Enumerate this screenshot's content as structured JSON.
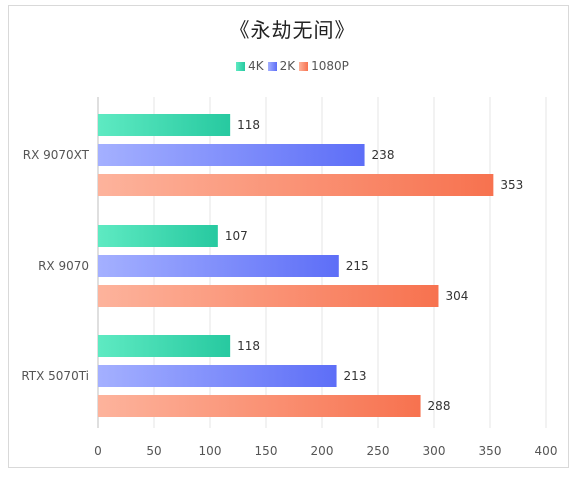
{
  "chart_data": {
    "type": "bar",
    "orientation": "horizontal",
    "title": "《永劫无间》",
    "categories": [
      "RX 9070XT",
      "RX 9070",
      "RTX 5070Ti"
    ],
    "series": [
      {
        "name": "4K",
        "values": [
          118,
          107,
          118
        ],
        "color_start": "#5eeac2",
        "color_end": "#27c9a0"
      },
      {
        "name": "2K",
        "values": [
          238,
          215,
          213
        ],
        "color_start": "#a4b0ff",
        "color_end": "#5d6ef7"
      },
      {
        "name": "1080P",
        "values": [
          353,
          304,
          288
        ],
        "color_start": "#fdb39c",
        "color_end": "#f7724f"
      }
    ],
    "xlim": [
      0,
      400
    ],
    "xticks": [
      0,
      50,
      100,
      150,
      200,
      250,
      300,
      350,
      400
    ],
    "grid": "vertical",
    "legend_position": "top-center"
  }
}
